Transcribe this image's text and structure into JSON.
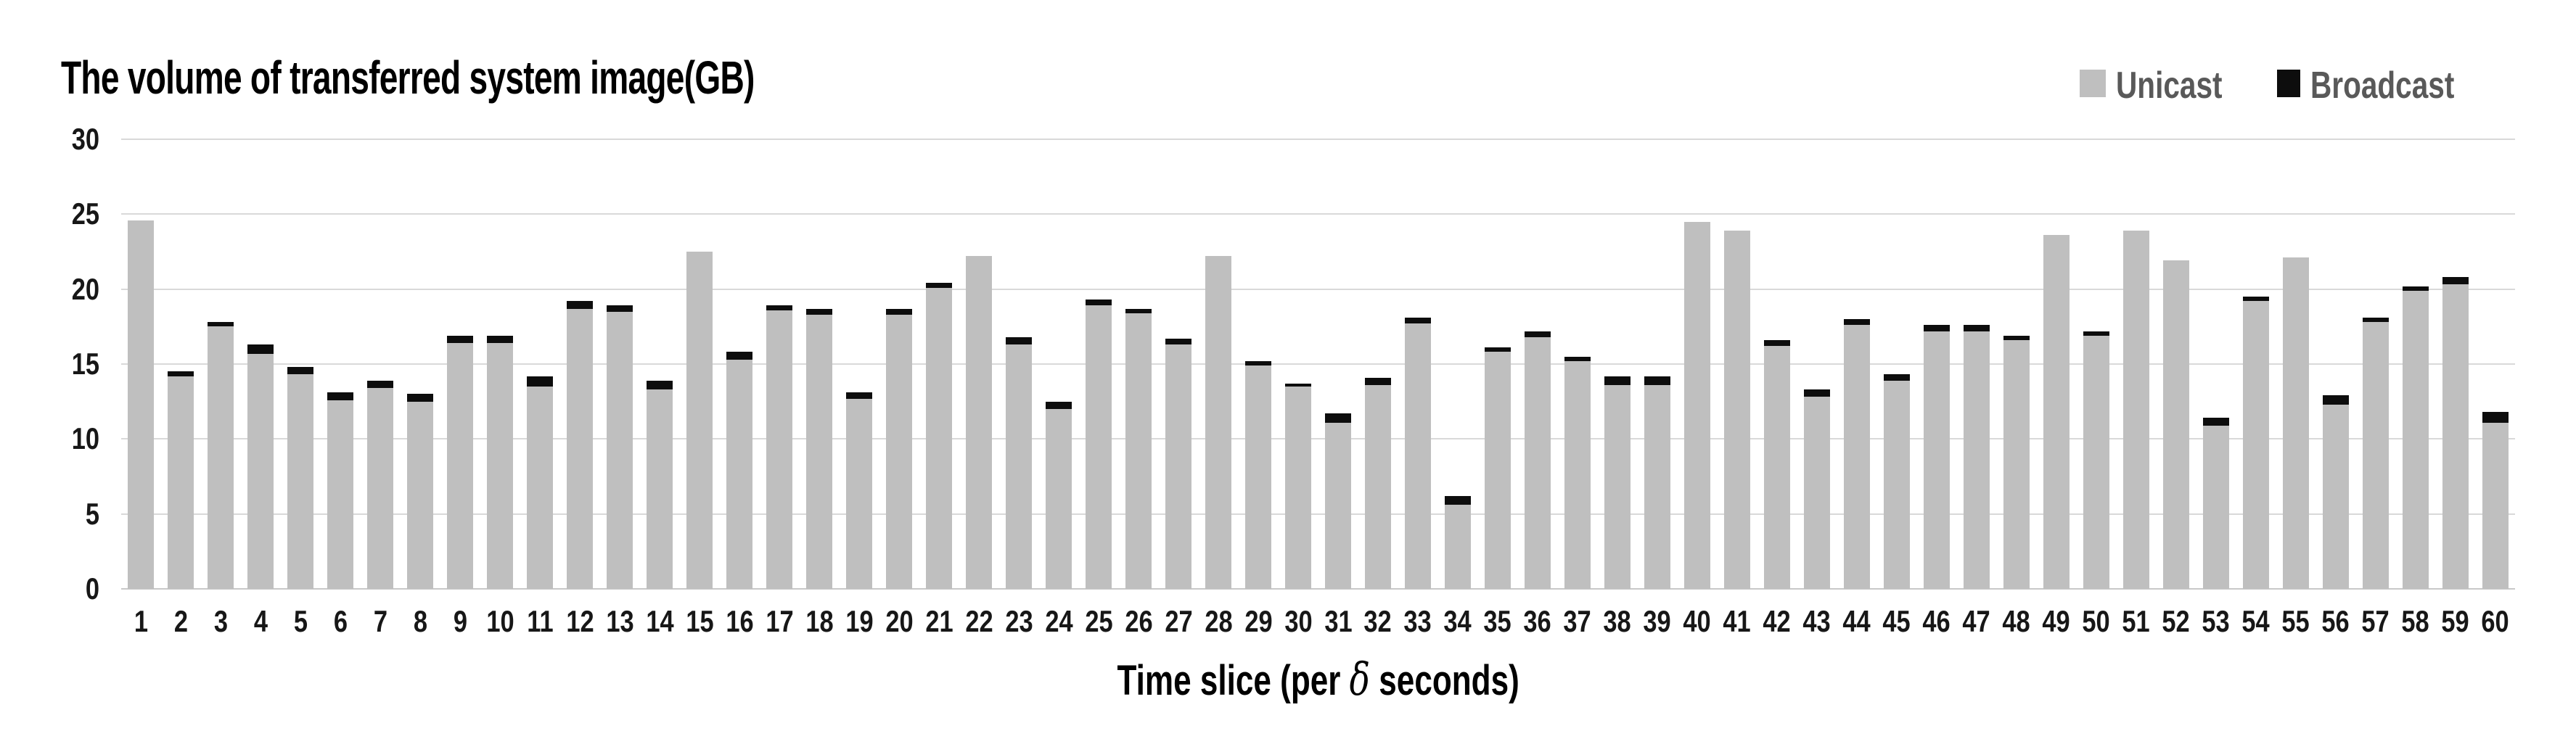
{
  "chart": {
    "title": "The volume of transferred system image(GB)",
    "legend": [
      {
        "label": "Unicast",
        "color": "#bfbfbf"
      },
      {
        "label": "Broadcast",
        "color": "#0d0d0d"
      }
    ],
    "xlabel_parts": {
      "pre": "Time slice (per ",
      "delta": "δ",
      "post": " seconds)"
    }
  },
  "chart_data": {
    "type": "bar",
    "stacked": true,
    "title": "The volume of transferred system image(GB)",
    "xlabel": "Time slice (per δ seconds)",
    "ylabel": "",
    "ylim": [
      0,
      30
    ],
    "yticks": [
      0,
      5,
      10,
      15,
      20,
      25,
      30
    ],
    "grid": true,
    "legend_position": "top-right",
    "categories": [
      "1",
      "2",
      "3",
      "4",
      "5",
      "6",
      "7",
      "8",
      "9",
      "10",
      "11",
      "12",
      "13",
      "14",
      "15",
      "16",
      "17",
      "18",
      "19",
      "20",
      "21",
      "22",
      "23",
      "24",
      "25",
      "26",
      "27",
      "28",
      "29",
      "30",
      "31",
      "32",
      "33",
      "34",
      "35",
      "36",
      "37",
      "38",
      "39",
      "40",
      "41",
      "42",
      "43",
      "44",
      "45",
      "46",
      "47",
      "48",
      "49",
      "50",
      "51",
      "52",
      "53",
      "54",
      "55",
      "56",
      "57",
      "58",
      "59",
      "60"
    ],
    "series": [
      {
        "name": "Unicast",
        "color": "#bfbfbf",
        "values": [
          24.6,
          14.2,
          17.5,
          15.7,
          14.3,
          12.6,
          13.4,
          12.5,
          16.4,
          16.4,
          13.5,
          18.7,
          18.5,
          13.3,
          22.5,
          15.3,
          18.6,
          18.3,
          12.7,
          18.3,
          20.1,
          22.2,
          16.3,
          12.0,
          18.9,
          18.4,
          16.3,
          22.2,
          14.9,
          13.5,
          11.1,
          13.6,
          17.7,
          5.6,
          15.8,
          16.8,
          15.2,
          13.6,
          13.6,
          24.5,
          23.9,
          16.2,
          12.8,
          17.6,
          13.9,
          17.2,
          17.2,
          16.6,
          23.6,
          16.9,
          23.9,
          21.9,
          10.9,
          19.2,
          22.1,
          12.3,
          17.8,
          19.9,
          20.3,
          11.1
        ]
      },
      {
        "name": "Broadcast",
        "color": "#0d0d0d",
        "values": [
          0,
          0.3,
          0.3,
          0.6,
          0.5,
          0.5,
          0.5,
          0.5,
          0.5,
          0.5,
          0.7,
          0.5,
          0.4,
          0.6,
          0,
          0.5,
          0.3,
          0.4,
          0.4,
          0.4,
          0.3,
          0,
          0.5,
          0.5,
          0.4,
          0.3,
          0.4,
          0,
          0.3,
          0.2,
          0.6,
          0.5,
          0.4,
          0.6,
          0.3,
          0.4,
          0.3,
          0.6,
          0.6,
          0,
          0,
          0.4,
          0.5,
          0.4,
          0.4,
          0.4,
          0.4,
          0.3,
          0,
          0.3,
          0,
          0,
          0.5,
          0.3,
          0,
          0.6,
          0.3,
          0.3,
          0.5,
          0.7
        ]
      }
    ]
  }
}
